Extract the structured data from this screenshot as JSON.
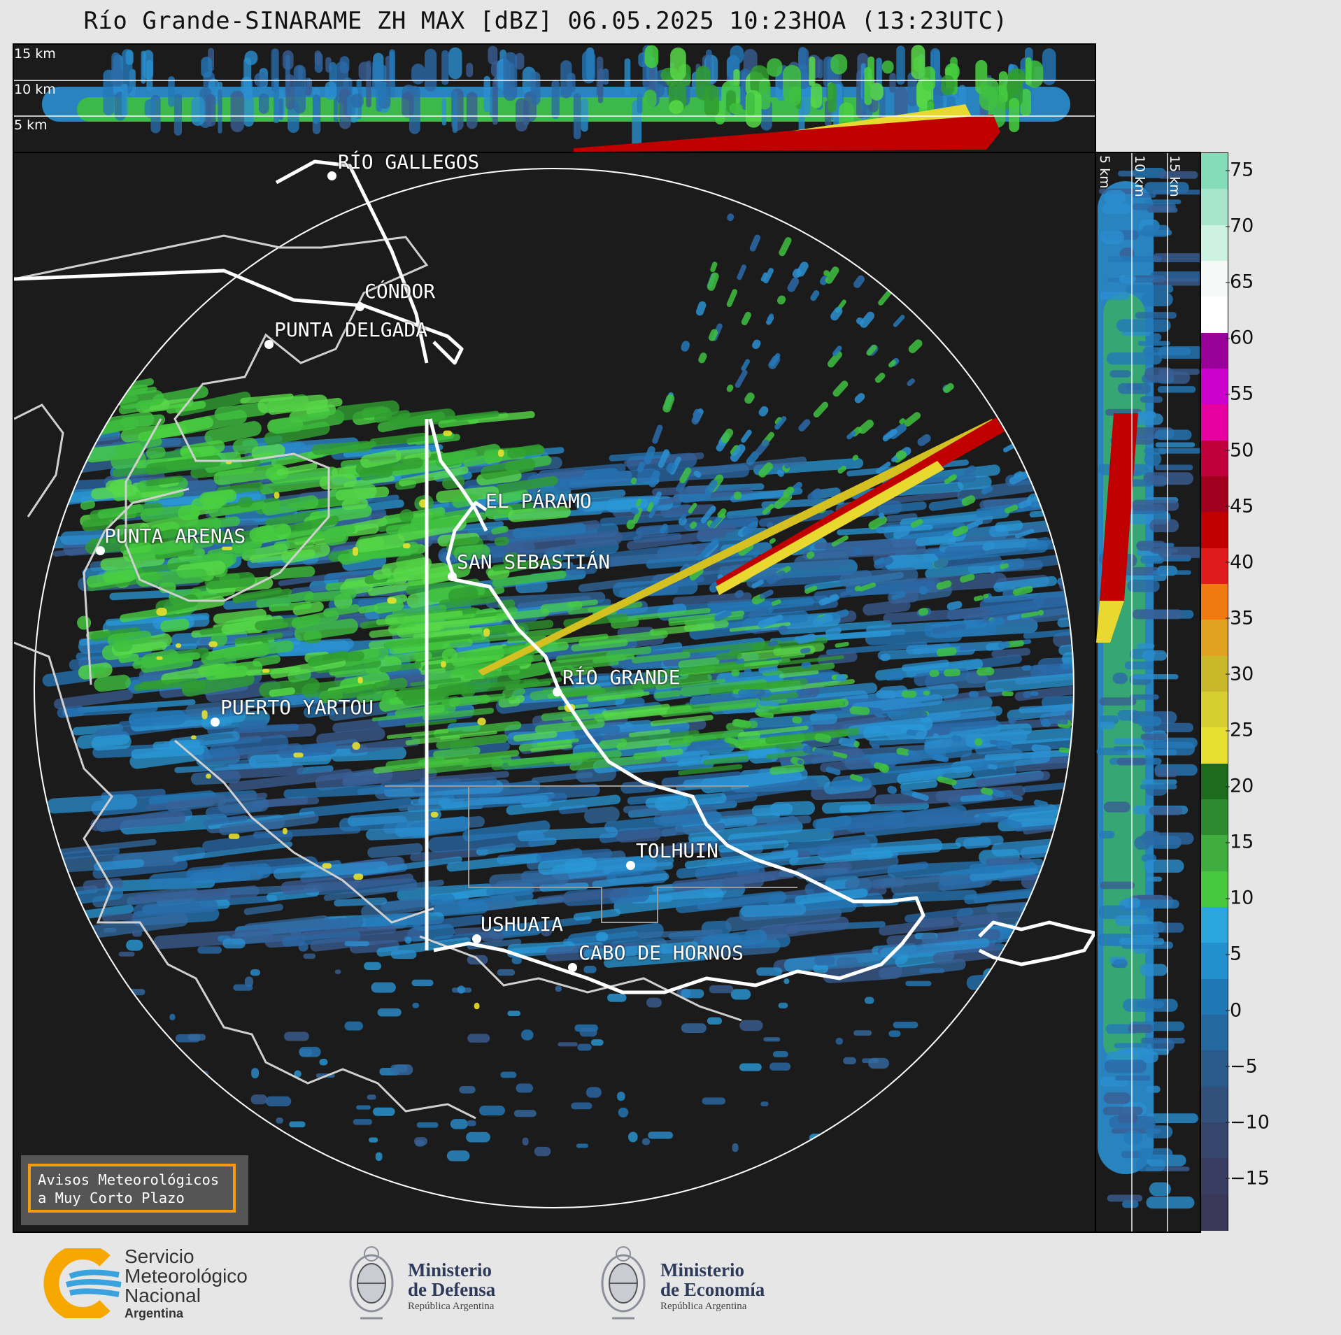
{
  "title": "Río Grande-SINARAME ZH MAX [dBZ] 06.05.2025 10:23HOA (13:23UTC)",
  "top_cross_section": {
    "labels": [
      "15 km",
      "10 km",
      "5 km"
    ]
  },
  "side_cross_section": {
    "labels": [
      "5 km",
      "10 km",
      "15 km"
    ]
  },
  "colorbar": {
    "ticks": [
      "75",
      "70",
      "65",
      "60",
      "55",
      "50",
      "45",
      "40",
      "35",
      "30",
      "25",
      "20",
      "15",
      "10",
      "5",
      "0",
      "−5",
      "−10",
      "−15"
    ],
    "colors_top_to_bottom": [
      "#85dcb8",
      "#a8e6cc",
      "#cdf2e2",
      "#f5faf8",
      "#ffffff",
      "#990099",
      "#cc00cc",
      "#e600a0",
      "#c0003a",
      "#a0001e",
      "#c00000",
      "#e01b1b",
      "#f07a10",
      "#e0a020",
      "#c8b82a",
      "#d7cf30",
      "#e8e030",
      "#1d6b1d",
      "#2e8a2e",
      "#3fae3f",
      "#48c83e",
      "#2ba6dd",
      "#2290cc",
      "#1f78b4",
      "#2468a0",
      "#2a5a8a",
      "#31507a",
      "#36456b",
      "#3a3d62",
      "#3a3858"
    ],
    "unit": "dBZ"
  },
  "cities": [
    {
      "name": "RÍO GALLEGOS"
    },
    {
      "name": "CÓNDOR"
    },
    {
      "name": "PUNTA DELGADA"
    },
    {
      "name": "EL PÁRAMO"
    },
    {
      "name": "PUNTA ARENAS"
    },
    {
      "name": "SAN SEBASTIÁN"
    },
    {
      "name": "RÍO GRANDE"
    },
    {
      "name": "PUERTO YARTOU"
    },
    {
      "name": "TOLHUIN"
    },
    {
      "name": "USHUAIA"
    },
    {
      "name": "CABO DE HORNOS"
    }
  ],
  "notice": {
    "line1": "Avisos Meteorológicos",
    "line2": "a Muy Corto Plazo"
  },
  "logos": {
    "smn": {
      "line1": "Servicio",
      "line2": "Meteorológico",
      "line3": "Nacional",
      "line4": "Argentina"
    },
    "defensa": {
      "line1": "Ministerio",
      "line2": "de Defensa",
      "line3": "República Argentina"
    },
    "economia": {
      "line1": "Ministerio",
      "line2": "de Economía",
      "line3": "República Argentina"
    }
  },
  "colors": {
    "background": "#e6e6e6",
    "map_bg": "#1b1b1b",
    "coast": "#ffffff",
    "border": "#cfcfcf",
    "notice_border": "#f39c12"
  }
}
